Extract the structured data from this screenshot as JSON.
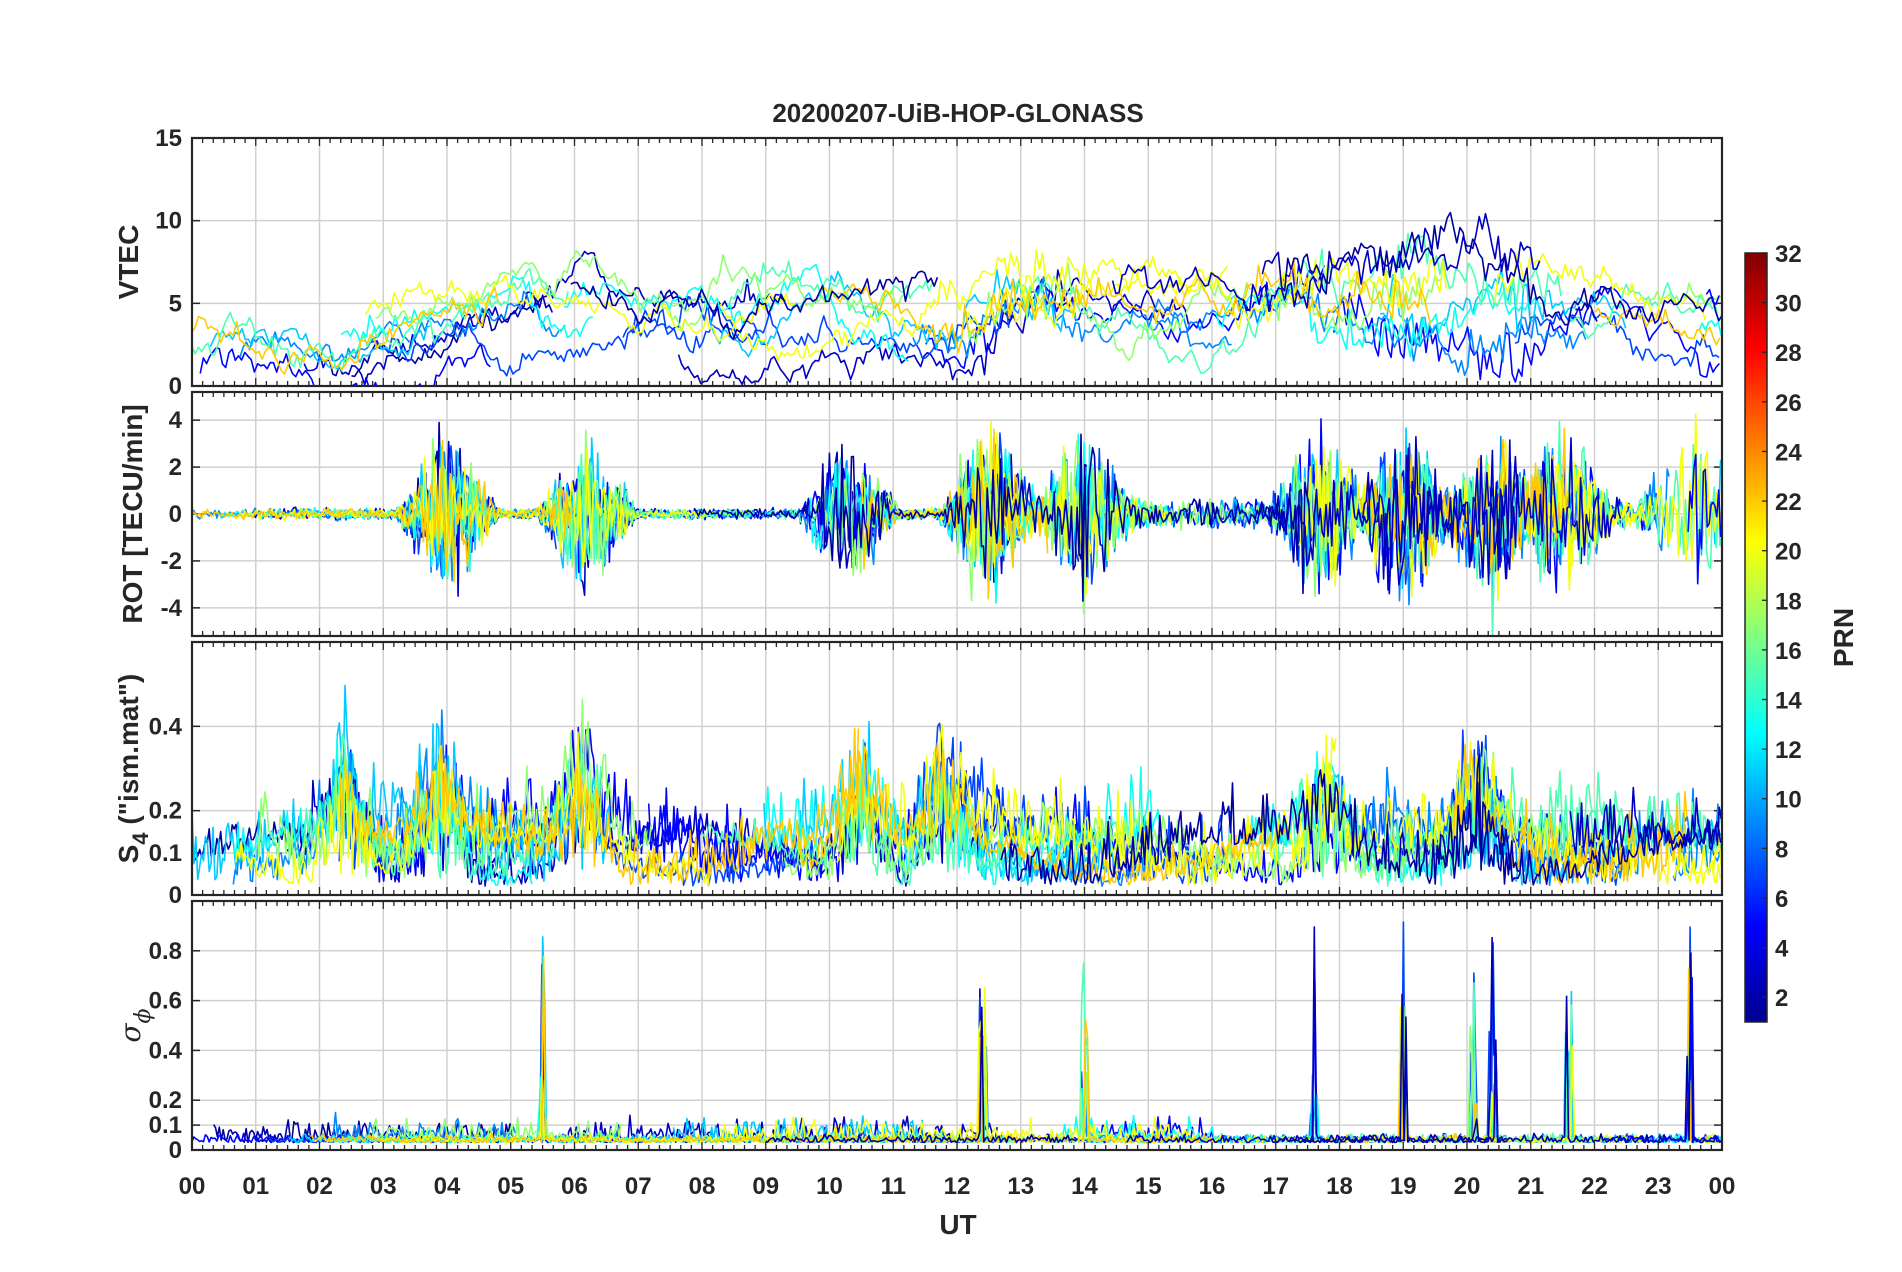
{
  "title": "20200207-UiB-HOP-GLONASS",
  "colors": {
    "axis": "#262626",
    "grid": "#d0d0d0",
    "colormap": "jet"
  },
  "chart_data": [
    {
      "type": "line",
      "panel": "vtec",
      "ylabel": "VTEC",
      "ylim": [
        0,
        15
      ],
      "yticks": [
        "0",
        "5",
        "10",
        "15"
      ],
      "x_range_ut_hours": [
        0,
        24
      ],
      "approx_level_profile": {
        "ut": [
          0,
          2,
          4,
          6,
          8,
          10,
          12,
          13,
          14,
          16,
          17.6,
          19,
          20.5,
          22,
          24
        ],
        "vtec": [
          1.8,
          2.5,
          3.5,
          4.5,
          4.2,
          4.0,
          3.5,
          5.5,
          5.0,
          4.5,
          5.8,
          4.8,
          5.0,
          4.2,
          4.0
        ]
      }
    },
    {
      "type": "line",
      "panel": "rot",
      "ylabel": "ROT [TECU/min]",
      "ylim": [
        -5.2,
        5.2
      ],
      "yticks": [
        "-4",
        "-2",
        "0",
        "2",
        "4"
      ],
      "x_range_ut_hours": [
        0,
        24
      ],
      "activity_bursts_ut": [
        4.0,
        6.2,
        10.3,
        12.5,
        14.0,
        17.7,
        19.0,
        20.4,
        21.5,
        23.5
      ]
    },
    {
      "type": "line",
      "panel": "s4",
      "ylabel_main": "S",
      "ylabel_sub": "4",
      "ylabel_rest": " (\"ism.mat\")",
      "ylim": [
        0,
        0.6
      ],
      "yticks": [
        "0",
        "0.1",
        "0.2",
        "0.4"
      ],
      "x_range_ut_hours": [
        0,
        24
      ],
      "peaks_ut": [
        2.4,
        3.9,
        6.1,
        10.5,
        11.8,
        17.8,
        20.2
      ]
    },
    {
      "type": "line",
      "panel": "sigma_phi",
      "ylabel_main": "σ",
      "ylabel_sub": "ϕ",
      "ylim": [
        0,
        1.0
      ],
      "yticks": [
        "0",
        "0.1",
        "0.2",
        "0.4",
        "0.6",
        "0.8"
      ],
      "x_range_ut_hours": [
        0,
        24
      ],
      "spikes_ut": [
        5.5,
        12.4,
        14.0,
        17.6,
        19.0,
        20.1,
        20.4,
        21.6,
        23.5
      ]
    }
  ],
  "xaxis": {
    "label": "UT",
    "ticks": [
      "00",
      "01",
      "02",
      "03",
      "04",
      "05",
      "06",
      "07",
      "08",
      "09",
      "10",
      "11",
      "12",
      "13",
      "14",
      "15",
      "16",
      "17",
      "18",
      "19",
      "20",
      "21",
      "22",
      "23",
      "00"
    ]
  },
  "colorbar": {
    "label": "PRN",
    "range": [
      1,
      32
    ],
    "ticks": [
      "2",
      "4",
      "6",
      "8",
      "10",
      "12",
      "14",
      "16",
      "18",
      "20",
      "22",
      "24",
      "26",
      "28",
      "30",
      "32"
    ]
  }
}
